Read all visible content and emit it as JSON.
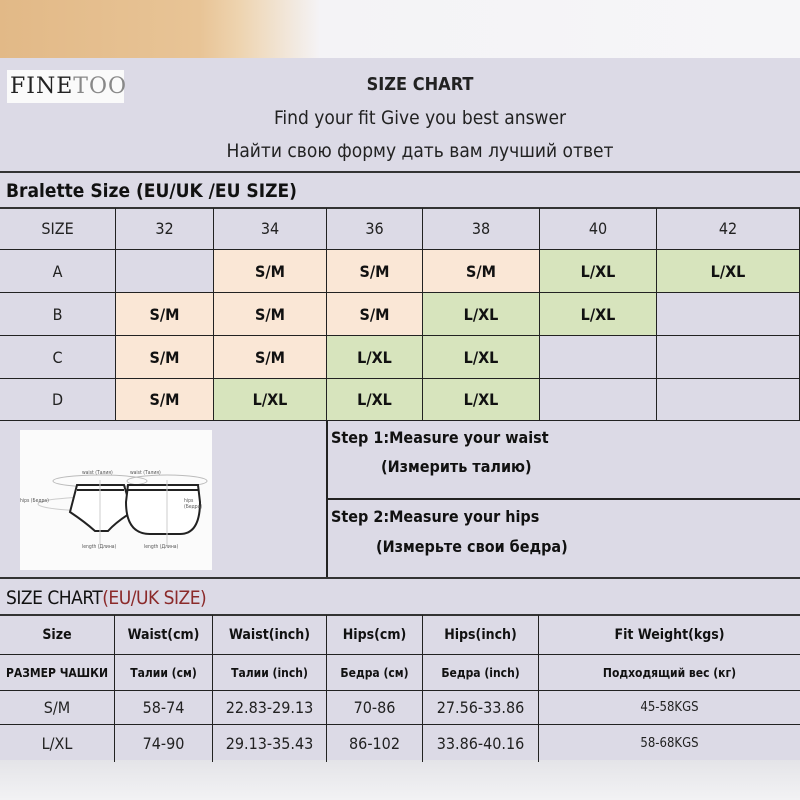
{
  "brand": {
    "logo_text_dark": "FINE",
    "logo_text_light": "TOO"
  },
  "header": {
    "title": "SIZE CHART",
    "subtitle_en": "Find your fit Give you best answer",
    "subtitle_ru": "Найти свою форму дать вам лучший ответ"
  },
  "bralette": {
    "title": "Bralette Size (EU/UK /EU SIZE)",
    "columns": [
      "SIZE",
      "32",
      "34",
      "36",
      "38",
      "40",
      "42"
    ],
    "rows": [
      {
        "cup": "A",
        "cells": [
          "",
          "S/M",
          "S/M",
          "S/M",
          "L/XL",
          "L/XL"
        ]
      },
      {
        "cup": "B",
        "cells": [
          "S/M",
          "S/M",
          "S/M",
          "L/XL",
          "L/XL",
          ""
        ]
      },
      {
        "cup": "C",
        "cells": [
          "S/M",
          "S/M",
          "L/XL",
          "L/XL",
          "",
          ""
        ]
      },
      {
        "cup": "D",
        "cells": [
          "S/M",
          "L/XL",
          "L/XL",
          "L/XL",
          "",
          ""
        ]
      }
    ],
    "colors": {
      "S/M": "#fae7d6",
      "L/XL": "#d7e4bd",
      "empty": "#dcdae6"
    }
  },
  "diagram": {
    "labels": [
      "waist (Талия)",
      "hips (Бедра)",
      "length (Длина)"
    ]
  },
  "steps": [
    {
      "label": "Step 1:Measure your waist",
      "ru": "(Измерить талию)"
    },
    {
      "label": "Step 2:Measure your hips",
      "ru": "(Измерьте свои бедра)"
    }
  ],
  "size_chart": {
    "title": "SIZE CHART",
    "title_suffix": "(EU/UK SIZE)",
    "headers": [
      "Size",
      "Waist(cm)",
      "Waist(inch)",
      "Hips(cm)",
      "Hips(inch)",
      "Fit  Weight(kgs)"
    ],
    "headers_ru": [
      "РАЗМЕР ЧАШКИ",
      "Талии (см)",
      "Талии (inch)",
      "Бедра (см)",
      "Бедра (inch)",
      "Подходящий вес (кг)"
    ],
    "rows": [
      [
        "S/M",
        "58-74",
        "22.83-29.13",
        "70-86",
        "27.56-33.86",
        "45-58KGS"
      ],
      [
        "L/XL",
        "74-90",
        "29.13-35.43",
        "86-102",
        "33.86-40.16",
        "58-68KGS"
      ]
    ]
  }
}
